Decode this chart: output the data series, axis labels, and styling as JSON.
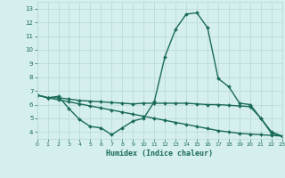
{
  "line1_x": [
    0,
    1,
    2,
    3,
    4,
    5,
    6,
    7,
    8,
    9,
    10,
    11,
    12,
    13,
    14,
    15,
    16,
    17,
    18,
    19,
    20,
    21,
    22,
    23
  ],
  "line1_y": [
    6.7,
    6.5,
    6.6,
    5.7,
    4.9,
    4.4,
    4.3,
    3.8,
    4.3,
    4.8,
    5.0,
    6.2,
    9.5,
    11.5,
    12.6,
    12.7,
    11.6,
    7.9,
    7.3,
    6.1,
    6.0,
    5.0,
    3.9,
    3.7
  ],
  "line2_x": [
    0,
    1,
    2,
    3,
    4,
    5,
    6,
    7,
    8,
    9,
    10,
    11,
    12,
    13,
    14,
    15,
    16,
    17,
    18,
    19,
    20,
    21,
    22,
    23
  ],
  "line2_y": [
    6.7,
    6.5,
    6.5,
    6.4,
    6.3,
    6.25,
    6.2,
    6.15,
    6.1,
    6.05,
    6.1,
    6.1,
    6.1,
    6.1,
    6.1,
    6.05,
    6.0,
    6.0,
    5.95,
    5.9,
    5.85,
    5.0,
    4.0,
    3.7
  ],
  "line3_x": [
    0,
    1,
    2,
    3,
    4,
    5,
    6,
    7,
    8,
    9,
    10,
    11,
    12,
    13,
    14,
    15,
    16,
    17,
    18,
    19,
    20,
    21,
    22,
    23
  ],
  "line3_y": [
    6.7,
    6.5,
    6.35,
    6.2,
    6.05,
    5.9,
    5.75,
    5.6,
    5.45,
    5.3,
    5.15,
    5.0,
    4.85,
    4.7,
    4.55,
    4.4,
    4.25,
    4.1,
    4.0,
    3.9,
    3.85,
    3.8,
    3.75,
    3.7
  ],
  "line_color": "#1a6b5a",
  "bg_color": "#d5eeee",
  "grid_color": "#b8d8d8",
  "xlabel": "Humidex (Indice chaleur)",
  "xlim": [
    0,
    23
  ],
  "ylim": [
    3.5,
    13.5
  ],
  "xticks": [
    0,
    1,
    2,
    3,
    4,
    5,
    6,
    7,
    8,
    9,
    10,
    11,
    12,
    13,
    14,
    15,
    16,
    17,
    18,
    19,
    20,
    21,
    22,
    23
  ],
  "yticks": [
    4,
    5,
    6,
    7,
    8,
    9,
    10,
    11,
    12,
    13
  ],
  "markersize": 2.0,
  "linewidth": 1.0
}
